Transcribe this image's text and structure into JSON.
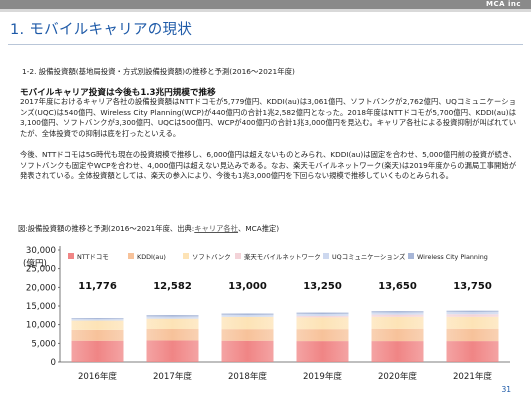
{
  "header": {
    "brand": "MCA inc"
  },
  "slide": {
    "title": "1. モバイルキャリアの現状",
    "subheading": "1-2. 設備投資額(基地局投資・方式別設備投資額)の推移と予測(2016～2021年度)",
    "headline": "モバイルキャリア投資は今後も1.3兆円規模で推移",
    "paragraph1": "2017年度におけるキャリア各社の設備投資額はNTTドコモが5,779億円、KDDI(au)は3,061億円、ソフトバンクが2,762億円、UQコミュニケーションズ(UQC)は540億円、Wireless City Planning(WCP)が440億円の合計1兆2,582億円となった。2018年度はNTTドコモが5,700億円、KDDI(au)は3,100億円、ソフトバンクが3,300億円、UQCは500億円、WCPが400億円の合計1兆3,000億円を見込む。キャリア各社による投資抑制が叫ばれていたが、全体投資での抑制は底を打ったといえる。",
    "paragraph2": "今後、NTTドコモは5G時代も現在の投資規模で推移し、6,000億円は超えないものとみられ、KDDI(au)は固定を合わせ、5,000億円前の投資が続き、ソフトバンクも固定やWCPを合わせ、4,000億円は超えない見込みである。なお、楽天モバイルネットワーク(楽天)は2019年度からの漏局工事開始が発表されている。全体投資額としては、楽天の参入により、今後も1兆3,000億円を下回らない規模で推移していくものとみられる。",
    "chart_caption_prefix": "図:設備投資額の推移と予測(2016～2021年度、出典:",
    "chart_caption_link": "キャリア各社",
    "chart_caption_suffix": "、MCA推定)",
    "page_number": "31"
  },
  "chart_data": {
    "type": "bar",
    "stacked": true,
    "unit_label": "(億円)",
    "categories": [
      "2016年度",
      "2017年度",
      "2018年度",
      "2019年度",
      "2020年度",
      "2021年度"
    ],
    "totals": [
      "11,776",
      "12,582",
      "13,000",
      "13,250",
      "13,650",
      "13,750"
    ],
    "ylim": [
      0,
      30000
    ],
    "yticks": [
      "0",
      "5,000",
      "10,000",
      "15,000",
      "20,000",
      "25,000",
      "30,000"
    ],
    "grid": false,
    "legend_position": "top",
    "series": [
      {
        "name": "NTTドコモ",
        "color": "#f08585",
        "values": [
          5700,
          5779,
          5700,
          5600,
          5600,
          5600
        ]
      },
      {
        "name": "KDDI(au)",
        "color": "#f7c29a",
        "values": [
          2900,
          3061,
          3100,
          3200,
          3300,
          3300
        ]
      },
      {
        "name": "ソフトバンク",
        "color": "#fde3b6",
        "values": [
          2500,
          2762,
          3300,
          3150,
          3200,
          3200
        ]
      },
      {
        "name": "楽天モバイルネットワーク",
        "color": "#f3d3d8",
        "values": [
          0,
          0,
          0,
          400,
          600,
          700
        ]
      },
      {
        "name": "UQコミュニケーションズ",
        "color": "#cdd8ef",
        "values": [
          376,
          540,
          500,
          500,
          550,
          550
        ]
      },
      {
        "name": "Wireless City Planning",
        "color": "#a7b6d7",
        "values": [
          300,
          440,
          400,
          400,
          400,
          400
        ]
      }
    ]
  }
}
